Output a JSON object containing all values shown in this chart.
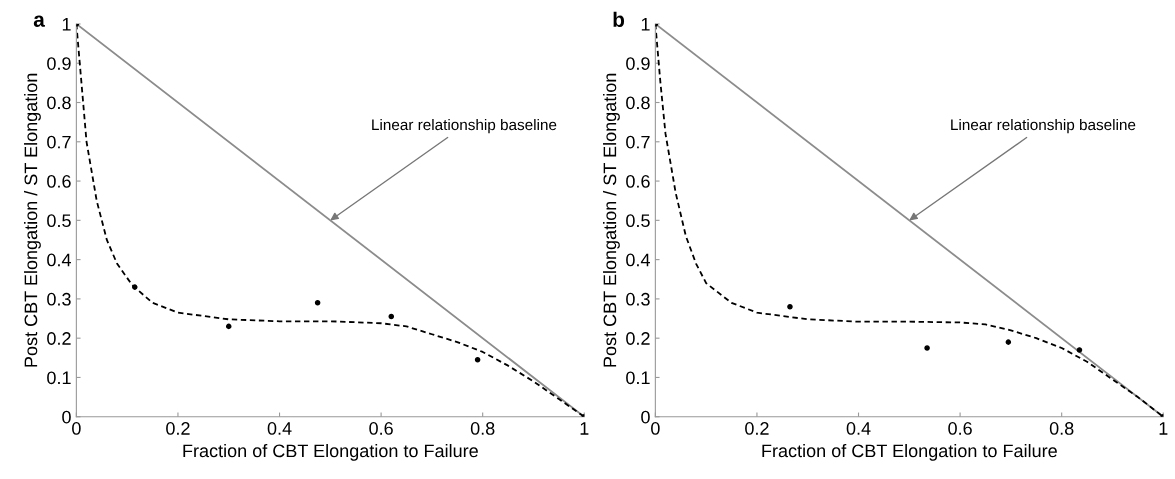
{
  "chart_data": [
    {
      "type": "scatter",
      "title": "a",
      "xlabel": "Fraction of CBT Elongation to Failure",
      "ylabel": "Post CBT Elongation / ST Elongation",
      "xlim": [
        0,
        1
      ],
      "ylim": [
        0,
        1
      ],
      "xticks": [
        0,
        0.2,
        0.4,
        0.6,
        0.8,
        1
      ],
      "yticks": [
        0,
        0.1,
        0.2,
        0.3,
        0.4,
        0.5,
        0.6,
        0.7,
        0.8,
        0.9,
        1
      ],
      "grid": false,
      "legend": false,
      "series": [
        {
          "marker": "circle",
          "color": "#000000",
          "x": [
            0,
            0.115,
            0.3,
            0.475,
            0.62,
            0.79,
            1
          ],
          "values": [
            1,
            0.33,
            0.23,
            0.29,
            0.255,
            0.145,
            0
          ]
        },
        {
          "type": "line",
          "line_style": "solid",
          "marker": "none",
          "color": "#8c8c8c",
          "x": [
            0,
            1
          ],
          "values": [
            1,
            0
          ]
        },
        {
          "type": "line",
          "line_style": "dashed",
          "marker": "none",
          "color": "#000000",
          "x": [
            0,
            0.01,
            0.02,
            0.04,
            0.06,
            0.08,
            0.11,
            0.15,
            0.2,
            0.3,
            0.4,
            0.5,
            0.6,
            0.65,
            0.7,
            0.75,
            0.8,
            0.85,
            0.9,
            0.95,
            1
          ],
          "values": [
            1,
            0.85,
            0.7,
            0.55,
            0.45,
            0.39,
            0.335,
            0.29,
            0.265,
            0.248,
            0.243,
            0.243,
            0.238,
            0.23,
            0.21,
            0.19,
            0.165,
            0.13,
            0.09,
            0.045,
            0
          ]
        }
      ],
      "annotations": [
        {
          "text": "Linear relationship baseline",
          "x": 0.5,
          "y": 0.5
        }
      ]
    },
    {
      "type": "scatter",
      "title": "b",
      "xlabel": "Fraction of CBT Elongation to Failure",
      "ylabel": "Post CBT Elongation / ST Elongation",
      "xlim": [
        0,
        1
      ],
      "ylim": [
        0,
        1
      ],
      "xticks": [
        0,
        0.2,
        0.4,
        0.6,
        0.8,
        1
      ],
      "yticks": [
        0,
        0.1,
        0.2,
        0.3,
        0.4,
        0.5,
        0.6,
        0.7,
        0.8,
        0.9,
        1
      ],
      "grid": false,
      "legend": false,
      "series": [
        {
          "marker": "circle",
          "color": "#000000",
          "x": [
            0,
            0.265,
            0.535,
            0.695,
            0.835,
            1
          ],
          "values": [
            1,
            0.28,
            0.175,
            0.19,
            0.17,
            0
          ]
        },
        {
          "type": "line",
          "line_style": "solid",
          "marker": "none",
          "color": "#8c8c8c",
          "x": [
            0,
            1
          ],
          "values": [
            1,
            0
          ]
        },
        {
          "type": "line",
          "line_style": "dashed",
          "marker": "none",
          "color": "#000000",
          "x": [
            0,
            0.01,
            0.02,
            0.04,
            0.06,
            0.08,
            0.1,
            0.15,
            0.2,
            0.3,
            0.4,
            0.5,
            0.6,
            0.65,
            0.7,
            0.75,
            0.8,
            0.85,
            0.9,
            0.95,
            1
          ],
          "values": [
            1,
            0.85,
            0.72,
            0.57,
            0.46,
            0.39,
            0.34,
            0.29,
            0.265,
            0.248,
            0.242,
            0.242,
            0.24,
            0.235,
            0.22,
            0.2,
            0.175,
            0.14,
            0.095,
            0.05,
            0
          ]
        }
      ],
      "annotations": [
        {
          "text": "Linear relationship baseline",
          "x": 0.5,
          "y": 0.5
        }
      ]
    }
  ]
}
